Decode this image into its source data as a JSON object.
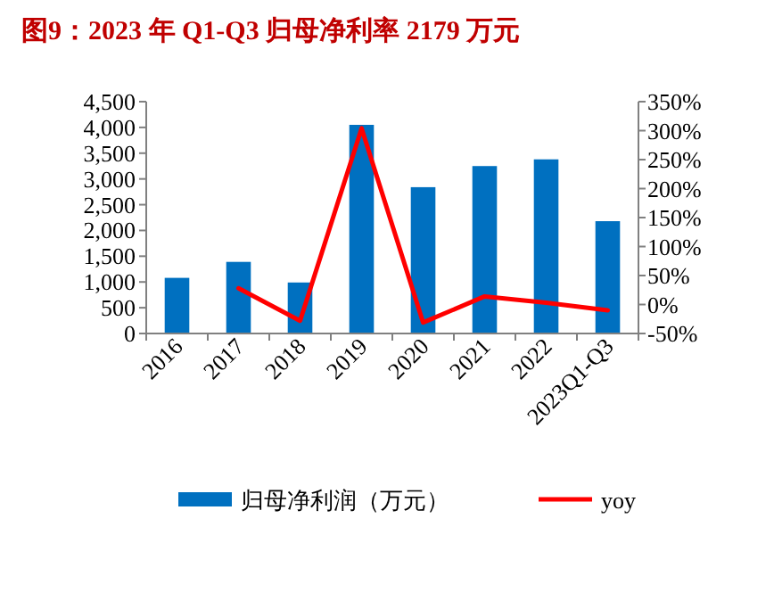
{
  "chart_data": {
    "type": "bar",
    "title": "图9：2023 年 Q1-Q3 归母净利率 2179 万元",
    "categories": [
      "2016",
      "2017",
      "2018",
      "2019",
      "2020",
      "2021",
      "2022",
      "2023Q1-Q3"
    ],
    "series": [
      {
        "name": "归母净利润（万元）",
        "color": "#0070c0",
        "values": [
          1080,
          1390,
          990,
          4050,
          2840,
          3250,
          3380,
          2180
        ]
      },
      {
        "name": "yoy",
        "type": "line",
        "axis": "y2",
        "color": "#ff0000",
        "values": [
          null,
          28,
          -28,
          304,
          -31,
          14,
          3,
          -10
        ]
      }
    ],
    "ylim": [
      0,
      4500
    ],
    "yticks": [
      0,
      {
        "value": 500,
        "label": "500"
      },
      {
        "value": 1000,
        "label": "1,000"
      },
      {
        "value": 1500,
        "label": "1,500"
      },
      {
        "value": 2000,
        "label": "2,000"
      },
      {
        "value": 2500,
        "label": "2,500"
      },
      {
        "value": 3000,
        "label": "3,000"
      },
      {
        "value": 3500,
        "label": "3,500"
      },
      {
        "value": 4000,
        "label": "4,000"
      },
      {
        "value": 4500,
        "label": "4,500"
      }
    ],
    "y2lim": [
      -50,
      350
    ],
    "y2ticks": [
      {
        "value": -50,
        "label": "-50%"
      },
      {
        "value": 0,
        "label": "0%"
      },
      {
        "value": 50,
        "label": "50%"
      },
      {
        "value": 100,
        "label": "100%"
      },
      {
        "value": 150,
        "label": "150%"
      },
      {
        "value": 200,
        "label": "200%"
      },
      {
        "value": 250,
        "label": "250%"
      },
      {
        "value": 300,
        "label": "300%"
      },
      {
        "value": 350,
        "label": "350%"
      }
    ],
    "grid": false,
    "legend": "bottom"
  }
}
